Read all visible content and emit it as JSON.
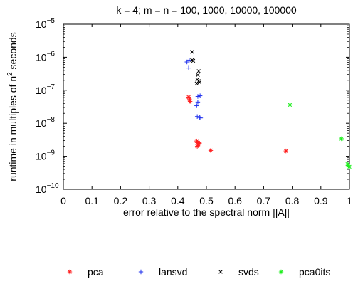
{
  "chart_data": {
    "type": "scatter",
    "title": "k = 4; m = n = 100, 1000, 10000, 100000",
    "xlabel": "error relative to the spectral norm ||A||",
    "ylabel_main": "runtime in multiples of n",
    "ylabel_sup": "2",
    "ylabel_tail": " seconds",
    "xlim": [
      0,
      1
    ],
    "ylim": [
      1e-10,
      1e-05
    ],
    "yscale": "log",
    "grid": false,
    "legend_position": "bottom",
    "x_ticks": [
      {
        "value": 0,
        "label": "0"
      },
      {
        "value": 0.1,
        "label": "0.1"
      },
      {
        "value": 0.2,
        "label": "0.2"
      },
      {
        "value": 0.3,
        "label": "0.3"
      },
      {
        "value": 0.4,
        "label": "0.4"
      },
      {
        "value": 0.5,
        "label": "0.5"
      },
      {
        "value": 0.6,
        "label": "0.6"
      },
      {
        "value": 0.7,
        "label": "0.7"
      },
      {
        "value": 0.8,
        "label": "0.8"
      },
      {
        "value": 0.9,
        "label": "0.9"
      },
      {
        "value": 1,
        "label": "1"
      }
    ],
    "y_ticks": [
      {
        "value": 1e-10,
        "base": "10",
        "exp": "−10"
      },
      {
        "value": 1e-09,
        "base": "10",
        "exp": "−9"
      },
      {
        "value": 1e-08,
        "base": "10",
        "exp": "−8"
      },
      {
        "value": 1e-07,
        "base": "10",
        "exp": "−7"
      },
      {
        "value": 1e-06,
        "base": "10",
        "exp": "−6"
      },
      {
        "value": 1e-05,
        "base": "10",
        "exp": "−5"
      }
    ],
    "series": [
      {
        "name": "pca",
        "marker": "asterisk",
        "color": "#ff2020",
        "points": [
          [
            0.438,
            6.2e-08
          ],
          [
            0.441,
            5.4e-08
          ],
          [
            0.443,
            4.6e-08
          ],
          [
            0.466,
            2.9e-09
          ],
          [
            0.469,
            2.6e-09
          ],
          [
            0.472,
            2.3e-09
          ],
          [
            0.468,
            2e-09
          ],
          [
            0.476,
            2.5e-09
          ],
          [
            0.515,
            1.5e-09
          ],
          [
            0.778,
            1.45e-09
          ]
        ]
      },
      {
        "name": "lansvd",
        "marker": "plus",
        "color": "#2233ee",
        "points": [
          [
            0.432,
            7.2e-07
          ],
          [
            0.438,
            4.7e-07
          ],
          [
            0.44,
            8.2e-07
          ],
          [
            0.47,
            6.5e-08
          ],
          [
            0.478,
            6.8e-08
          ],
          [
            0.47,
            4.4e-08
          ],
          [
            0.466,
            3.4e-08
          ],
          [
            0.468,
            1.6e-08
          ],
          [
            0.476,
            1.5e-08
          ],
          [
            0.48,
            1.45e-08
          ]
        ]
      },
      {
        "name": "svds",
        "marker": "cross",
        "color": "#000000",
        "points": [
          [
            0.45,
            1.45e-06
          ],
          [
            0.45,
            8.2e-07
          ],
          [
            0.454,
            7.8e-07
          ],
          [
            0.473,
            3.8e-07
          ],
          [
            0.47,
            2.9e-07
          ],
          [
            0.468,
            2.1e-07
          ],
          [
            0.473,
            1.9e-07
          ],
          [
            0.476,
            1.75e-07
          ],
          [
            0.466,
            1.6e-07
          ]
        ]
      },
      {
        "name": "pca0its",
        "marker": "asterisk",
        "color": "#22ee22",
        "points": [
          [
            0.792,
            3.6e-08
          ],
          [
            0.972,
            3.4e-09
          ],
          [
            0.993,
            5.8e-10
          ],
          [
            0.996,
            5.2e-10
          ],
          [
            1.0,
            4.8e-10
          ]
        ]
      }
    ]
  }
}
